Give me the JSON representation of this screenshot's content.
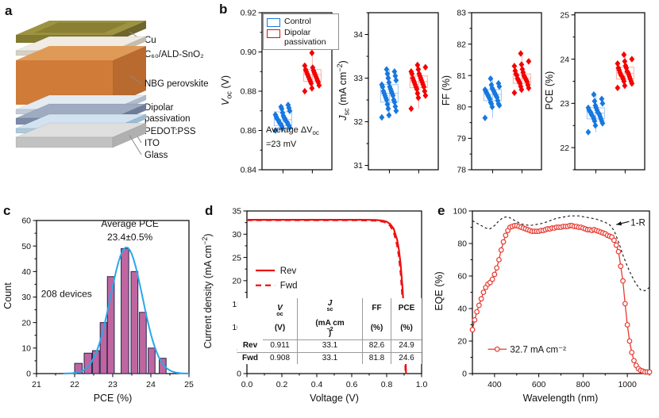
{
  "panel_labels": {
    "a": "a",
    "b": "b",
    "c": "c",
    "d": "d",
    "e": "e"
  },
  "colors": {
    "control_blue": "#1778e0",
    "control_blue_light": "#9cc6f2",
    "passivation_red": "#f50000",
    "passivation_red_light": "#f8aca6",
    "hist_fill": "#bf66a0",
    "hist_edge": "#20264d",
    "gauss_blue": "#2aa7e8",
    "jv_red": "#ee1111",
    "eqe_red": "#e8392e",
    "one_minus_r_black": "#222222",
    "leader_gray": "#8a8a8a"
  },
  "device_stack": {
    "layers": [
      {
        "id": "cu",
        "label": "Cu",
        "top": "#9d9340",
        "front": "#837a31",
        "side": "#6e662a",
        "inner": "#8a8034"
      },
      {
        "id": "c60",
        "label": "C₆₀/ALD-SnO₂",
        "top": "#f0ebe3",
        "front": "#d7d0c3",
        "side": "#c5bdaf"
      },
      {
        "id": "nbg",
        "label": "NBG perovskite",
        "top": "#e09a58",
        "front": "#d07c38",
        "side": "#b96a2e"
      },
      {
        "id": "dipolar",
        "label": "Dipolar passivation",
        "label_lines": [
          "Dipolar",
          "passivation"
        ],
        "top": "#e4eaf1",
        "front": "#c1ccda",
        "side": "#b0bccd"
      },
      {
        "id": "pedot",
        "label": "PEDOT:PSS",
        "top": "#9fabc0",
        "front": "#7c8ca6",
        "side": "#6d7d99"
      },
      {
        "id": "ito",
        "label": "ITO",
        "top": "#d3e2f0",
        "front": "#accadf",
        "side": "#9cbbd6"
      },
      {
        "id": "glass",
        "label": "Glass",
        "top": "#dedede",
        "front": "#c2c2c2",
        "side": "#b0b0b0"
      }
    ]
  },
  "b_legend": {
    "control": "Control",
    "dipolar": "Dipolar passivation"
  },
  "rich": {
    "b_voc_y": [
      [
        {
          "t": "V",
          "i": 1
        },
        {
          "t": "oc",
          "sub": 1
        },
        {
          "t": " (V)"
        }
      ]
    ],
    "b_jsc_y": [
      [
        {
          "t": "J",
          "i": 1
        },
        {
          "t": "sc",
          "sub": 1
        },
        {
          "t": " (mA cm"
        },
        {
          "t": "−2",
          "sup": 1
        },
        {
          "t": ")"
        }
      ]
    ],
    "b_ff_y": [
      [
        {
          "t": "FF (%)"
        }
      ]
    ],
    "b_pce_y": [
      [
        {
          "t": "PCE (%)"
        }
      ]
    ],
    "b_voc_annot": [
      [
        {
          "t": "Average ΔV"
        },
        {
          "t": "oc",
          "sub": 1
        }
      ],
      [
        {
          "t": "=23 mV"
        }
      ]
    ],
    "c_y": [
      [
        {
          "t": "Count"
        }
      ]
    ],
    "c_x": [
      [
        {
          "t": "PCE (%)"
        }
      ]
    ],
    "d_y": [
      [
        {
          "t": "Current density (mA cm"
        },
        {
          "t": "−2",
          "sup": 1
        },
        {
          "t": ")"
        }
      ]
    ],
    "d_x": [
      [
        {
          "t": "Voltage (V)"
        }
      ]
    ],
    "e_y": [
      [
        {
          "t": "EQE (%)"
        }
      ]
    ],
    "e_x": [
      [
        {
          "t": "Wavelength (nm)"
        }
      ]
    ],
    "tbl_voc": [
      [
        {
          "t": "V",
          "i": 1,
          "b": 1
        },
        {
          "t": "oc",
          "sub": 1,
          "b": 1
        }
      ],
      [
        {
          "t": "(V)",
          "b": 1
        }
      ]
    ],
    "tbl_jsc": [
      [
        {
          "t": "J",
          "i": 1,
          "b": 1
        },
        {
          "t": "sc",
          "sub": 1,
          "b": 1
        }
      ],
      [
        {
          "t": "(mA cm",
          "b": 1
        },
        {
          "t": "−2",
          "sup": 1,
          "b": 1
        },
        {
          "t": ")",
          "b": 1
        }
      ]
    ],
    "tbl_ff": [
      [
        {
          "t": "FF",
          "b": 1
        }
      ],
      [
        {
          "t": "(%)",
          "b": 1
        }
      ]
    ],
    "tbl_pce": [
      [
        {
          "t": "PCE",
          "b": 1
        }
      ],
      [
        {
          "t": "(%)",
          "b": 1
        }
      ]
    ]
  },
  "d_table": {
    "rows": [
      {
        "name": "Rev",
        "values": [
          "0.911",
          "33.1",
          "82.6",
          "24.9"
        ]
      },
      {
        "name": "Fwd",
        "values": [
          "0.908",
          "33.1",
          "81.8",
          "24.6"
        ]
      }
    ]
  },
  "chart_data": [
    {
      "id": "b_voc",
      "type": "scatter",
      "ylabel": "Voc (V)",
      "ylim": [
        0.84,
        0.92
      ],
      "yticks": [
        0.84,
        0.86,
        0.88,
        0.9,
        0.92
      ],
      "yminor": 0.01,
      "ydec": 2,
      "annotation": "Average ΔVoc =23 mV",
      "groups": [
        {
          "name": "Control",
          "values": [
            0.86,
            0.861,
            0.8615,
            0.862,
            0.8625,
            0.863,
            0.863,
            0.8635,
            0.864,
            0.864,
            0.8645,
            0.865,
            0.865,
            0.8655,
            0.866,
            0.866,
            0.8665,
            0.867,
            0.8675,
            0.868,
            0.869,
            0.87,
            0.871,
            0.8715,
            0.872,
            0.873
          ],
          "box": {
            "lo": 0.86,
            "q1": 0.8625,
            "med": 0.8655,
            "q3": 0.8695,
            "hi": 0.873
          }
        },
        {
          "name": "Dipolar passivation",
          "values": [
            0.88,
            0.8815,
            0.883,
            0.884,
            0.8845,
            0.885,
            0.8855,
            0.886,
            0.8865,
            0.887,
            0.8875,
            0.888,
            0.8885,
            0.889,
            0.8895,
            0.89,
            0.8905,
            0.891,
            0.892,
            0.893,
            0.8995
          ],
          "box": {
            "lo": 0.88,
            "q1": 0.885,
            "med": 0.8885,
            "q3": 0.891,
            "hi": 0.8995
          }
        }
      ]
    },
    {
      "id": "b_jsc",
      "type": "scatter",
      "ylabel": "Jsc (mA cm-2)",
      "ylim": [
        30.9,
        34.5
      ],
      "yticks": [
        31,
        32,
        33,
        34
      ],
      "yminor": 0.5,
      "ydec": 0,
      "groups": [
        {
          "name": "Control",
          "values": [
            32.1,
            32.15,
            32.25,
            32.3,
            32.35,
            32.4,
            32.45,
            32.5,
            32.5,
            32.55,
            32.6,
            32.6,
            32.65,
            32.65,
            32.7,
            32.7,
            32.75,
            32.8,
            32.8,
            32.85,
            32.9,
            32.95,
            33.0,
            33.05,
            33.1,
            33.15,
            33.2
          ],
          "box": {
            "lo": 32.1,
            "q1": 32.45,
            "med": 32.65,
            "q3": 32.85,
            "hi": 33.2
          }
        },
        {
          "name": "Dipolar passivation",
          "values": [
            32.3,
            32.55,
            32.6,
            32.65,
            32.7,
            32.75,
            32.8,
            32.8,
            32.85,
            32.85,
            32.9,
            32.9,
            32.95,
            32.95,
            33.0,
            33.0,
            33.05,
            33.1,
            33.1,
            33.15,
            33.2,
            33.25,
            33.3
          ],
          "box": {
            "lo": 32.3,
            "q1": 32.78,
            "med": 32.92,
            "q3": 33.05,
            "hi": 33.3
          }
        }
      ]
    },
    {
      "id": "b_ff",
      "type": "scatter",
      "ylabel": "FF (%)",
      "ylim": [
        78,
        83
      ],
      "yticks": [
        78,
        79,
        80,
        81,
        82,
        83
      ],
      "yminor": 0.5,
      "ydec": 0,
      "groups": [
        {
          "name": "Control",
          "values": [
            79.65,
            80.0,
            80.05,
            80.1,
            80.1,
            80.15,
            80.2,
            80.25,
            80.3,
            80.3,
            80.35,
            80.35,
            80.4,
            80.4,
            80.45,
            80.45,
            80.5,
            80.5,
            80.55,
            80.55,
            80.6,
            80.65,
            80.7,
            80.75,
            80.9
          ],
          "box": {
            "lo": 79.65,
            "q1": 80.2,
            "med": 80.4,
            "q3": 80.55,
            "hi": 80.9
          }
        },
        {
          "name": "Dipolar passivation",
          "values": [
            80.45,
            80.55,
            80.6,
            80.65,
            80.7,
            80.75,
            80.8,
            80.8,
            80.85,
            80.85,
            80.9,
            80.9,
            80.95,
            81.0,
            81.0,
            81.05,
            81.1,
            81.15,
            81.2,
            81.3,
            81.35,
            81.45,
            81.7
          ],
          "box": {
            "lo": 80.45,
            "q1": 80.75,
            "med": 80.9,
            "q3": 81.05,
            "hi": 81.7
          }
        }
      ]
    },
    {
      "id": "b_pce",
      "type": "scatter",
      "ylabel": "PCE (%)",
      "ylim": [
        21.5,
        25.05
      ],
      "yticks": [
        22,
        23,
        24,
        25
      ],
      "yminor": 0.5,
      "ydec": 0,
      "groups": [
        {
          "name": "Control",
          "values": [
            22.35,
            22.5,
            22.55,
            22.6,
            22.6,
            22.65,
            22.65,
            22.7,
            22.7,
            22.72,
            22.75,
            22.75,
            22.78,
            22.8,
            22.8,
            22.82,
            22.85,
            22.85,
            22.9,
            22.9,
            22.95,
            23.0,
            23.05,
            23.1,
            23.2
          ],
          "box": {
            "lo": 22.35,
            "q1": 22.65,
            "med": 22.78,
            "q3": 22.9,
            "hi": 23.2
          }
        },
        {
          "name": "Dipolar passivation",
          "values": [
            23.35,
            23.4,
            23.45,
            23.5,
            23.5,
            23.55,
            23.55,
            23.6,
            23.6,
            23.62,
            23.65,
            23.65,
            23.7,
            23.7,
            23.72,
            23.75,
            23.8,
            23.8,
            23.85,
            23.9,
            23.95,
            24.0,
            24.1
          ],
          "box": {
            "lo": 23.35,
            "q1": 23.55,
            "med": 23.68,
            "q3": 23.82,
            "hi": 24.1
          }
        }
      ]
    },
    {
      "id": "c_hist",
      "type": "bar",
      "xlabel": "PCE (%)",
      "ylabel": "Count",
      "xlim": [
        21,
        25
      ],
      "ylim": [
        0,
        60
      ],
      "xticks": [
        21,
        22,
        23,
        24,
        25
      ],
      "yticks": [
        0,
        10,
        20,
        30,
        40,
        50,
        60
      ],
      "xminor": 0.5,
      "yminor": 5,
      "bars": [
        [
          22.0,
          22.2,
          4
        ],
        [
          22.25,
          22.45,
          8
        ],
        [
          22.47,
          22.65,
          9
        ],
        [
          22.67,
          22.85,
          20
        ],
        [
          22.86,
          23.04,
          38
        ],
        [
          23.22,
          23.42,
          49
        ],
        [
          23.48,
          23.66,
          40
        ],
        [
          23.7,
          23.88,
          24
        ],
        [
          23.93,
          24.11,
          10
        ],
        [
          24.22,
          24.4,
          6
        ]
      ],
      "fit": {
        "mean": 23.36,
        "sigma": 0.42,
        "amp": 49.5
      },
      "annotations": [
        {
          "t": "Average PCE",
          "x": 23.45,
          "y": 57.5,
          "anchor": "middle",
          "size": 12
        },
        {
          "t": "23.4±0.5%",
          "x": 23.45,
          "y": 52.3,
          "anchor": "middle",
          "size": 12
        },
        {
          "t": "208 devices",
          "x": 21.12,
          "y": 30,
          "anchor": "start",
          "size": 12
        }
      ]
    },
    {
      "id": "d_jv",
      "type": "line",
      "xlabel": "Voltage (V)",
      "ylabel": "Current density (mA cm-2)",
      "xlim": [
        0,
        1
      ],
      "ylim": [
        0,
        35
      ],
      "xticks": [
        0,
        0.2,
        0.4,
        0.6,
        0.8,
        1.0
      ],
      "yticks": [
        0,
        5,
        10,
        15,
        20,
        25,
        30,
        35
      ],
      "xminor": 0.1,
      "yminor": 2.5,
      "xdec": 1,
      "ydec": 0,
      "series": [
        {
          "name": "Rev",
          "dash": "none",
          "points": [
            [
              0,
              33.1
            ],
            [
              0.1,
              33.1
            ],
            [
              0.2,
              33.1
            ],
            [
              0.3,
              33.1
            ],
            [
              0.4,
              33.1
            ],
            [
              0.5,
              33.1
            ],
            [
              0.6,
              33.1
            ],
            [
              0.65,
              33.1
            ],
            [
              0.7,
              33.08
            ],
            [
              0.74,
              33.05
            ],
            [
              0.78,
              32.9
            ],
            [
              0.8,
              32.7
            ],
            [
              0.82,
              32.2
            ],
            [
              0.84,
              31.2
            ],
            [
              0.86,
              28.8
            ],
            [
              0.87,
              26.7
            ],
            [
              0.88,
              23.5
            ],
            [
              0.89,
              18.8
            ],
            [
              0.895,
              15.7
            ],
            [
              0.9,
              11.8
            ],
            [
              0.905,
              7.1
            ],
            [
              0.908,
              3.7
            ],
            [
              0.911,
              0
            ]
          ]
        },
        {
          "name": "Fwd",
          "dash": "7 5",
          "points": [
            [
              0,
              33.0
            ],
            [
              0.1,
              33.0
            ],
            [
              0.2,
              33.0
            ],
            [
              0.3,
              33.0
            ],
            [
              0.4,
              33.0
            ],
            [
              0.5,
              33.0
            ],
            [
              0.6,
              33.0
            ],
            [
              0.65,
              33.0
            ],
            [
              0.7,
              32.97
            ],
            [
              0.74,
              32.9
            ],
            [
              0.78,
              32.7
            ],
            [
              0.8,
              32.4
            ],
            [
              0.82,
              31.8
            ],
            [
              0.84,
              30.5
            ],
            [
              0.86,
              27.6
            ],
            [
              0.87,
              25.2
            ],
            [
              0.88,
              21.6
            ],
            [
              0.89,
              16.3
            ],
            [
              0.895,
              12.8
            ],
            [
              0.9,
              8.6
            ],
            [
              0.905,
              3.5
            ],
            [
              0.908,
              0
            ]
          ]
        }
      ]
    },
    {
      "id": "e_eqe",
      "type": "line",
      "xlabel": "Wavelength (nm)",
      "ylabel": "EQE (%)",
      "xlim": [
        300,
        1100
      ],
      "ylim": [
        0,
        100
      ],
      "xticks": [
        400,
        600,
        800,
        1000
      ],
      "yticks": [
        0,
        20,
        40,
        60,
        80,
        100
      ],
      "xminor": 100,
      "yminor": 10,
      "xdec": 0,
      "ydec": 0,
      "legend_label": "32.7 mA cm⁻²",
      "annotation": "1-R",
      "eqe_x0": 300,
      "eqe_step": 10,
      "eqe": [
        27,
        33,
        38,
        42,
        46,
        50,
        53,
        55,
        56,
        58,
        61,
        65,
        70,
        76,
        81,
        85,
        88,
        90,
        90.5,
        91,
        91,
        90.5,
        90,
        89.5,
        89,
        88.5,
        88,
        87.5,
        87.5,
        87.5,
        87.5,
        88,
        88,
        88.5,
        89,
        89,
        89.5,
        89.5,
        90,
        90,
        90,
        90.5,
        90.5,
        90.5,
        91,
        91,
        90.5,
        90.5,
        90,
        90,
        89.5,
        89,
        88.5,
        88.5,
        88,
        88.5,
        88,
        87.5,
        87,
        86.5,
        86,
        85,
        84.5,
        84,
        82,
        79,
        75,
        66,
        57,
        43,
        30,
        20,
        13,
        8,
        5,
        3,
        2,
        1.5,
        1,
        1,
        1
      ],
      "oneR_x0": 300,
      "oneR_step": 20,
      "oneR": [
        94,
        92.5,
        91,
        89.5,
        89,
        91,
        94,
        96,
        96.5,
        95,
        93.5,
        92,
        91.5,
        91,
        91.5,
        92,
        92.5,
        93.5,
        94.5,
        95.5,
        96,
        96.5,
        97,
        97,
        97,
        96.5,
        96,
        95.5,
        95,
        94,
        93,
        91.5,
        88,
        81,
        73,
        66,
        60,
        55,
        51.5,
        51,
        53
      ]
    }
  ]
}
